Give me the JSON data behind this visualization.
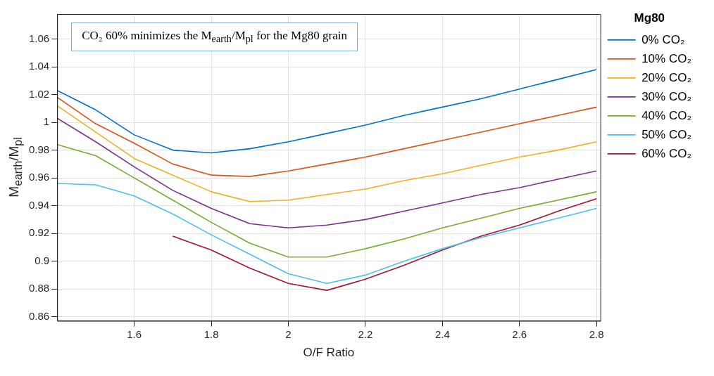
{
  "chart_data": {
    "type": "line",
    "xlabel": "O/F Ratio",
    "ylabel": "M$_{earth}$/M$_{pl}$",
    "legend_title": "Mg80",
    "annotations": [
      "CO₂ 60% minimizes the M$_{earth}$/M$_{pl}$ for the Mg80 grain"
    ],
    "x": [
      1.4,
      1.5,
      1.6,
      1.7,
      1.8,
      1.9,
      2.0,
      2.1,
      2.2,
      2.3,
      2.4,
      2.5,
      2.6,
      2.7,
      2.8
    ],
    "series": [
      {
        "name": "0% CO₂",
        "color": "#0072bd",
        "values": [
          1.023,
          1.009,
          0.991,
          0.98,
          0.978,
          0.981,
          0.986,
          0.992,
          0.998,
          1.005,
          1.011,
          1.017,
          1.024,
          1.031,
          1.038
        ]
      },
      {
        "name": "10% CO₂",
        "color": "#d95319",
        "values": [
          1.018,
          0.999,
          0.985,
          0.97,
          0.962,
          0.961,
          0.965,
          0.97,
          0.975,
          0.981,
          0.987,
          0.993,
          0.999,
          1.005,
          1.011
        ]
      },
      {
        "name": "20% CO₂",
        "color": "#edb120",
        "values": [
          1.012,
          0.993,
          0.974,
          0.962,
          0.95,
          0.943,
          0.944,
          0.948,
          0.952,
          0.958,
          0.963,
          0.969,
          0.975,
          0.98,
          0.986
        ]
      },
      {
        "name": "30% CO₂",
        "color": "#7e2f8e",
        "values": [
          1.003,
          0.986,
          0.968,
          0.951,
          0.938,
          0.927,
          0.924,
          0.926,
          0.93,
          0.936,
          0.942,
          0.948,
          0.953,
          0.959,
          0.965
        ]
      },
      {
        "name": "40% CO₂",
        "color": "#77ac30",
        "values": [
          0.984,
          0.976,
          0.96,
          0.944,
          0.928,
          0.913,
          0.903,
          0.903,
          0.909,
          0.916,
          0.924,
          0.931,
          0.938,
          0.944,
          0.95
        ]
      },
      {
        "name": "50% CO₂",
        "color": "#4dbeee",
        "values": [
          0.956,
          0.955,
          0.947,
          0.934,
          0.919,
          0.905,
          0.891,
          0.884,
          0.89,
          0.9,
          0.909,
          0.917,
          0.924,
          0.931,
          0.938
        ]
      },
      {
        "name": "60% CO₂",
        "color": "#a2142f",
        "values": [
          null,
          null,
          null,
          0.918,
          0.908,
          0.895,
          0.884,
          0.879,
          0.887,
          0.897,
          0.908,
          0.918,
          0.926,
          0.936,
          0.945
        ]
      }
    ],
    "xlim": [
      1.4,
      2.81
    ],
    "xticks": [
      1.6,
      1.8,
      2.0,
      2.2,
      2.4,
      2.6,
      2.8
    ],
    "ylim": [
      0.857,
      1.078
    ],
    "yticks": [
      0.86,
      0.88,
      0.9,
      0.92,
      0.94,
      0.96,
      0.98,
      1,
      1.02,
      1.04,
      1.06
    ],
    "grid": true,
    "legend": "top right",
    "marker": "none",
    "line_style": "solid"
  }
}
